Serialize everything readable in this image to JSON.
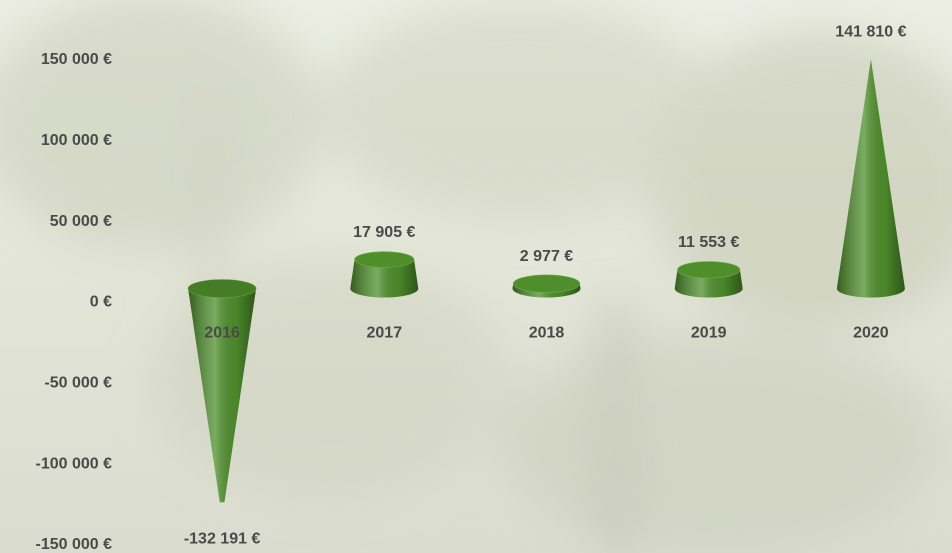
{
  "chart_data": {
    "type": "cone",
    "categories": [
      "2016",
      "2017",
      "2018",
      "2019",
      "2020"
    ],
    "values": [
      -132191,
      17905,
      2977,
      11553,
      141810
    ],
    "value_labels": [
      "-132 191 €",
      "17 905 €",
      "2 977 €",
      "11 553 €",
      "141 810 €"
    ],
    "color": "#4e8f2c",
    "ylim": [
      -150000,
      150000
    ],
    "yticks": [
      {
        "value": 150000,
        "label": "150 000 €"
      },
      {
        "value": 100000,
        "label": "100 000 €"
      },
      {
        "value": 50000,
        "label": "50 000 €"
      },
      {
        "value": 0,
        "label": "0 €"
      },
      {
        "value": -50000,
        "label": "-50 000 €"
      },
      {
        "value": -100000,
        "label": "-100 000 €"
      },
      {
        "value": -150000,
        "label": "-150 000 €"
      }
    ]
  }
}
